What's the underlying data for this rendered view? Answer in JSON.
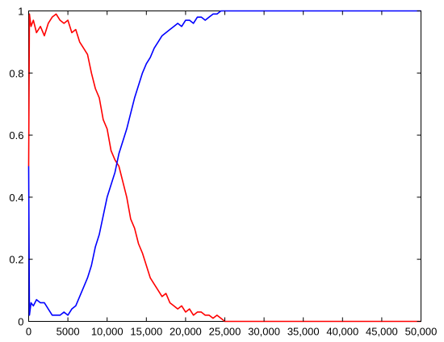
{
  "chart_data": {
    "type": "line",
    "title": "",
    "xlabel": "",
    "ylabel": "",
    "xlim": [
      0,
      50000
    ],
    "ylim": [
      0,
      1
    ],
    "grid": false,
    "x_ticks": [
      0,
      5000,
      10000,
      15000,
      20000,
      25000,
      30000,
      35000,
      40000,
      45000,
      50000
    ],
    "x_tick_labels": [
      "0",
      "5000",
      "10,000",
      "15,000",
      "20,000",
      "25,000",
      "30,000",
      "35,000",
      "40,000",
      "45,000",
      "50,000"
    ],
    "y_ticks": [
      0,
      0.2,
      0.4,
      0.6,
      0.8,
      1
    ],
    "y_tick_labels": [
      "0",
      "0.2",
      "0.4",
      "0.6",
      "0.8",
      "1"
    ],
    "series": [
      {
        "color": "#ff0000",
        "x": [
          0,
          100,
          300,
          600,
          1000,
          1500,
          2000,
          2500,
          3000,
          3500,
          4000,
          4500,
          5000,
          5500,
          6000,
          6500,
          7000,
          7500,
          8000,
          8500,
          9000,
          9500,
          10000,
          10500,
          11000,
          11500,
          12000,
          12500,
          13000,
          13500,
          14000,
          14500,
          15000,
          15500,
          16000,
          16500,
          17000,
          17500,
          18000,
          18500,
          19000,
          19500,
          20000,
          20500,
          21000,
          21500,
          22000,
          22500,
          23000,
          23500,
          24000,
          24500,
          25000,
          26000,
          30000,
          35000,
          40000,
          45000,
          50000
        ],
        "values": [
          0.5,
          0.99,
          0.95,
          0.97,
          0.93,
          0.95,
          0.92,
          0.96,
          0.98,
          0.99,
          0.97,
          0.96,
          0.97,
          0.93,
          0.94,
          0.9,
          0.88,
          0.86,
          0.8,
          0.75,
          0.72,
          0.65,
          0.62,
          0.55,
          0.52,
          0.5,
          0.45,
          0.4,
          0.33,
          0.3,
          0.25,
          0.22,
          0.18,
          0.14,
          0.12,
          0.1,
          0.08,
          0.09,
          0.06,
          0.05,
          0.04,
          0.05,
          0.03,
          0.04,
          0.02,
          0.03,
          0.03,
          0.02,
          0.02,
          0.01,
          0.02,
          0.01,
          0.0,
          0.0,
          0.0,
          0.0,
          0.0,
          0.0,
          0.0
        ]
      },
      {
        "color": "#0000ff",
        "x": [
          0,
          100,
          300,
          600,
          1000,
          1500,
          2000,
          2500,
          3000,
          3500,
          4000,
          4500,
          5000,
          5500,
          6000,
          6500,
          7000,
          7500,
          8000,
          8500,
          9000,
          9500,
          10000,
          10500,
          11000,
          11500,
          12000,
          12500,
          13000,
          13500,
          14000,
          14500,
          15000,
          15500,
          16000,
          16500,
          17000,
          17500,
          18000,
          18500,
          19000,
          19500,
          20000,
          20500,
          21000,
          21500,
          22000,
          22500,
          23000,
          23500,
          24000,
          24500,
          25000,
          26000,
          30000,
          35000,
          40000,
          45000,
          50000
        ],
        "values": [
          0.5,
          0.02,
          0.06,
          0.05,
          0.07,
          0.06,
          0.06,
          0.04,
          0.02,
          0.02,
          0.02,
          0.03,
          0.02,
          0.04,
          0.05,
          0.08,
          0.11,
          0.14,
          0.18,
          0.24,
          0.28,
          0.34,
          0.4,
          0.44,
          0.48,
          0.54,
          0.58,
          0.62,
          0.67,
          0.72,
          0.76,
          0.8,
          0.83,
          0.85,
          0.88,
          0.9,
          0.92,
          0.93,
          0.94,
          0.95,
          0.96,
          0.95,
          0.97,
          0.97,
          0.96,
          0.98,
          0.98,
          0.97,
          0.98,
          0.99,
          0.99,
          1.0,
          1.0,
          1.0,
          1.0,
          1.0,
          1.0,
          1.0,
          1.0
        ]
      }
    ]
  }
}
